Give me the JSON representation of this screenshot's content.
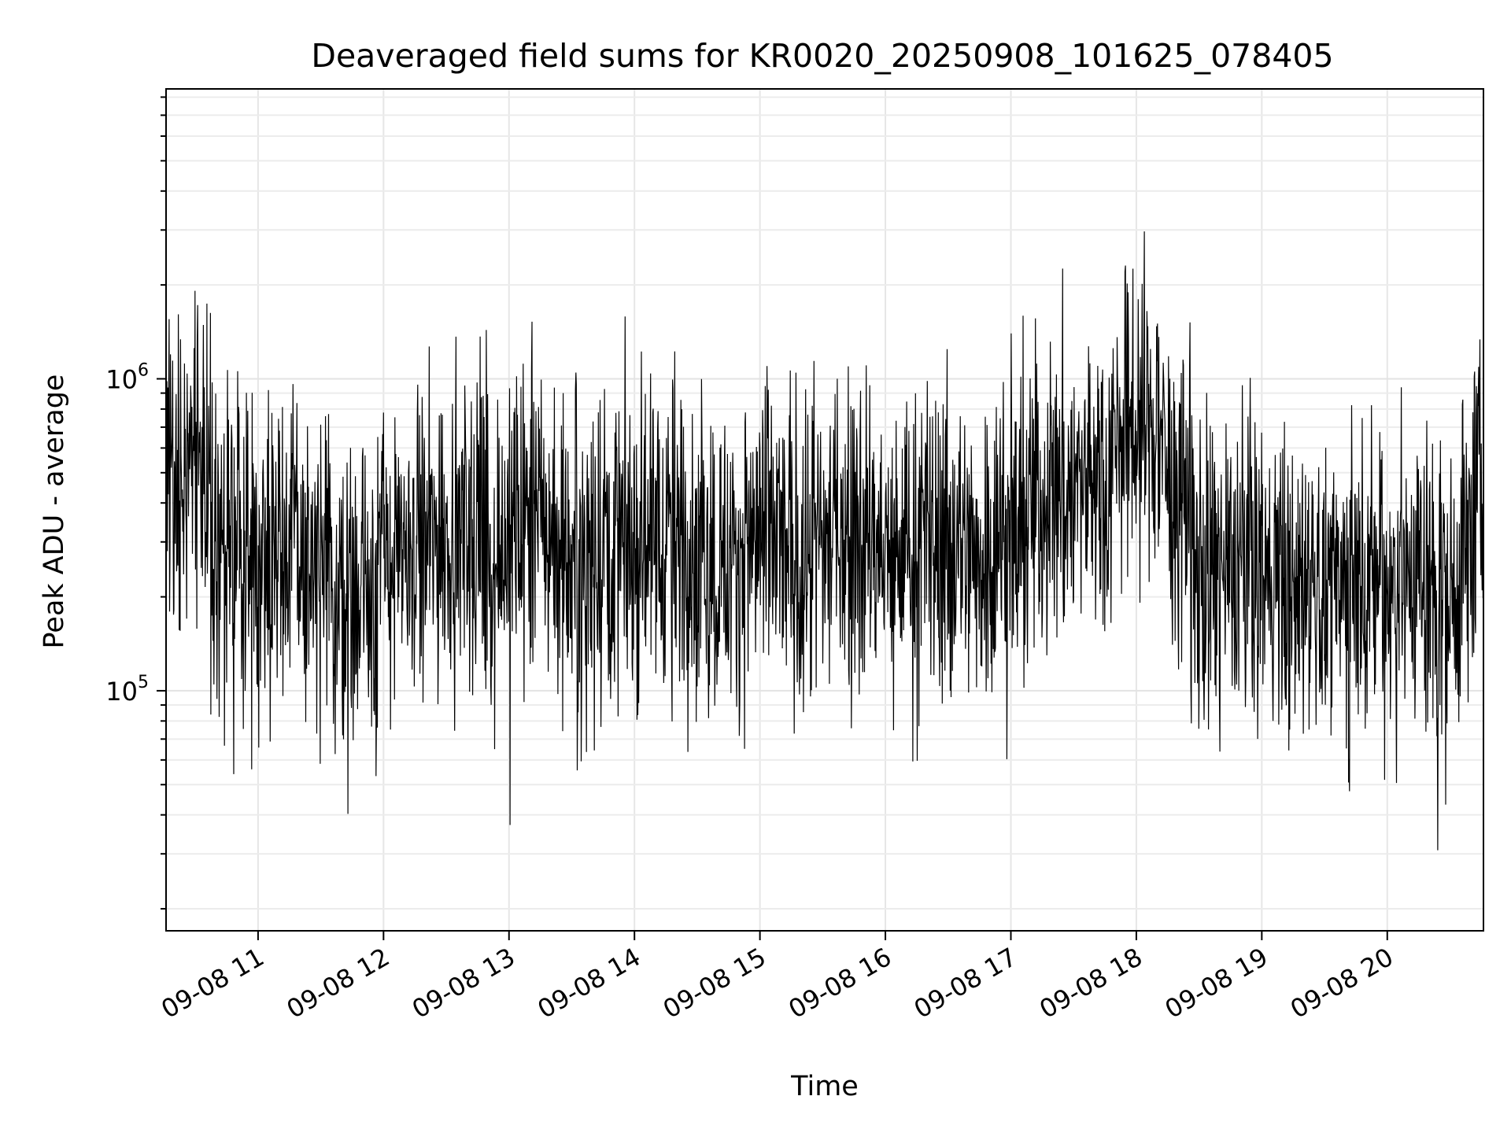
{
  "chart_data": {
    "type": "line",
    "title": "Deaveraged field sums for KR0020_20250908_101625_078405",
    "xlabel": "Time",
    "ylabel": "Peak ADU - average",
    "yscale": "log",
    "xlim": [
      "09-08 10:16",
      "09-08 20:46"
    ],
    "ylim": [
      17000,
      8500000
    ],
    "grid": true,
    "legend": "none",
    "line_color": "#000000",
    "x_ticks": [
      "09-08 11",
      "09-08 12",
      "09-08 13",
      "09-08 14",
      "09-08 15",
      "09-08 16",
      "09-08 17",
      "09-08 18",
      "09-08 19",
      "09-08 20"
    ],
    "y_ticks": [
      {
        "value": 100000,
        "base": "10",
        "exp": "5"
      },
      {
        "value": 1000000,
        "base": "10",
        "exp": "6"
      }
    ],
    "series": [
      {
        "x": [
          "09-08 10:16",
          "09-08 10:30",
          "09-08 10:45",
          "09-08 11:00",
          "09-08 11:15",
          "09-08 11:30",
          "09-08 11:45",
          "09-08 12:00",
          "09-08 12:15",
          "09-08 12:30",
          "09-08 12:45",
          "09-08 13:00",
          "09-08 13:15",
          "09-08 13:30",
          "09-08 13:45",
          "09-08 14:00",
          "09-08 14:15",
          "09-08 14:30",
          "09-08 14:45",
          "09-08 15:00",
          "09-08 15:15",
          "09-08 15:30",
          "09-08 15:45",
          "09-08 16:00",
          "09-08 16:15",
          "09-08 16:30",
          "09-08 16:45",
          "09-08 17:00",
          "09-08 17:15",
          "09-08 17:30",
          "09-08 17:45",
          "09-08 18:00",
          "09-08 18:15",
          "09-08 18:30",
          "09-08 18:45",
          "09-08 19:00",
          "09-08 19:15",
          "09-08 19:30",
          "09-08 19:45",
          "09-08 20:00",
          "09-08 20:15",
          "09-08 20:30",
          "09-08 20:46"
        ],
        "y": [
          420000,
          650000,
          240000,
          290000,
          320000,
          210000,
          190000,
          260000,
          250000,
          340000,
          280000,
          300000,
          360000,
          270000,
          310000,
          300000,
          330000,
          280000,
          250000,
          320000,
          270000,
          300000,
          340000,
          260000,
          280000,
          300000,
          270000,
          330000,
          420000,
          440000,
          520000,
          800000,
          600000,
          230000,
          240000,
          250000,
          200000,
          210000,
          220000,
          230000,
          240000,
          180000,
          500000
        ]
      }
    ]
  }
}
